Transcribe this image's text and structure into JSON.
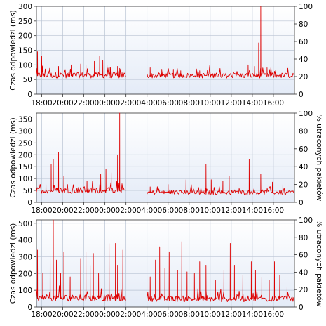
{
  "colors": {
    "series": "#dd0000",
    "plot_bg_top": "#ffffff",
    "plot_bg_bottom": "#e4ebf7",
    "grid": "#b9c3d3",
    "gap_bg": "#f7f8fb"
  },
  "chart_data": [
    {
      "type": "line",
      "ylabel": "Czas odpowiedzi (ms)",
      "y2label": "",
      "xlabel": "",
      "ylim": [
        0,
        300
      ],
      "y2lim": [
        0,
        100
      ],
      "yticks": [
        "0",
        "50",
        "100",
        "150",
        "200",
        "250",
        "300"
      ],
      "y2ticks": [
        "0",
        "20",
        "40",
        "60",
        "80",
        "100"
      ],
      "xticks": [
        "20:00",
        "22:00",
        "00:00",
        "02:00",
        "04:00",
        "06:00",
        "08:00",
        "10:00",
        "12:00",
        "14:00",
        "16:00",
        "18:00"
      ],
      "x_start_hour": 17.5,
      "x_end_hour": 42.0,
      "grid": true,
      "series": [
        {
          "segments": [
            {
              "start_hour": 17.5,
              "end_hour": 26.0,
              "base": 63,
              "noise": 10,
              "spikes": [
                [
                  17.6,
                  145
                ],
                [
                  18.0,
                  130
                ],
                [
                  19.6,
                  95
                ],
                [
                  20.8,
                  100
                ],
                [
                  21.7,
                  103
                ],
                [
                  22.2,
                  100
                ],
                [
                  23.0,
                  112
                ],
                [
                  23.5,
                  130
                ],
                [
                  23.8,
                  115
                ],
                [
                  24.2,
                  100
                ],
                [
                  24.5,
                  92
                ],
                [
                  25.2,
                  95
                ],
                [
                  25.4,
                  88
                ]
              ]
            },
            {
              "start_hour": 28.0,
              "end_hour": 42.0,
              "base": 62,
              "noise": 9,
              "spikes": [
                [
                  28.3,
                  90
                ],
                [
                  29.4,
                  85
                ],
                [
                  30.5,
                  85
                ],
                [
                  31.2,
                  80
                ],
                [
                  33.0,
                  80
                ],
                [
                  37.6,
                  100
                ],
                [
                  38.2,
                  95
                ],
                [
                  38.6,
                  175
                ],
                [
                  38.8,
                  300
                ],
                [
                  39.4,
                  90
                ],
                [
                  40.2,
                  80
                ]
              ]
            }
          ]
        }
      ]
    },
    {
      "type": "line",
      "ylabel": "Czas odpowiedzi (ms)",
      "y2label": "% utraconych pakietów",
      "xlabel": "",
      "ylim": [
        0,
        375
      ],
      "y2lim": [
        0,
        100
      ],
      "yticks": [
        "0",
        "50",
        "100",
        "150",
        "200",
        "250",
        "300",
        "350"
      ],
      "y2ticks": [
        "0",
        "20",
        "40",
        "60",
        "80",
        "100"
      ],
      "xticks": [
        "20:00",
        "22:00",
        "00:00",
        "02:00",
        "04:00",
        "06:00",
        "08:00",
        "10:00",
        "12:00",
        "14:00",
        "16:00",
        "18:00"
      ],
      "x_start_hour": 17.5,
      "x_end_hour": 42.0,
      "grid": true,
      "series": [
        {
          "segments": [
            {
              "start_hour": 17.5,
              "end_hour": 26.0,
              "base": 48,
              "noise": 12,
              "spikes": [
                [
                  18.4,
                  90
                ],
                [
                  18.9,
                  160
                ],
                [
                  19.1,
                  180
                ],
                [
                  19.6,
                  210
                ],
                [
                  20.1,
                  110
                ],
                [
                  22.3,
                  90
                ],
                [
                  23.6,
                  120
                ],
                [
                  24.1,
                  140
                ],
                [
                  24.6,
                  125
                ],
                [
                  25.2,
                  200
                ],
                [
                  25.4,
                  375
                ]
              ]
            },
            {
              "start_hour": 28.0,
              "end_hour": 42.0,
              "base": 40,
              "noise": 9,
              "spikes": [
                [
                  28.3,
                  65
                ],
                [
                  30.0,
                  75
                ],
                [
                  31.7,
                  95
                ],
                [
                  33.6,
                  160
                ],
                [
                  34.1,
                  95
                ],
                [
                  35.2,
                  90
                ],
                [
                  35.8,
                  110
                ],
                [
                  37.7,
                  180
                ],
                [
                  38.8,
                  120
                ],
                [
                  39.9,
                  85
                ],
                [
                  40.9,
                  90
                ]
              ]
            }
          ]
        }
      ]
    },
    {
      "type": "line",
      "ylabel": "Czas odpowiedzi (ms)",
      "y2label": "% utraconych pakietów",
      "xlabel": "",
      "ylim": [
        0,
        520
      ],
      "y2lim": [
        0,
        100
      ],
      "yticks": [
        "0",
        "100",
        "200",
        "300",
        "400",
        "500"
      ],
      "y2ticks": [
        "0",
        "20",
        "40",
        "60",
        "80",
        "100"
      ],
      "xticks": [
        "20:00",
        "22:00",
        "00:00",
        "02:00",
        "04:00",
        "06:00",
        "08:00",
        "10:00",
        "12:00",
        "14:00",
        "16:00",
        "18:00"
      ],
      "x_start_hour": 17.5,
      "x_end_hour": 42.0,
      "grid": true,
      "series": [
        {
          "segments": [
            {
              "start_hour": 17.5,
              "end_hour": 26.0,
              "base": 50,
              "noise": 20,
              "spikes": [
                [
                  17.6,
                  340
                ],
                [
                  18.1,
                  200
                ],
                [
                  18.8,
                  420
                ],
                [
                  19.1,
                  520
                ],
                [
                  19.4,
                  280
                ],
                [
                  19.8,
                  200
                ],
                [
                  20.1,
                  330
                ],
                [
                  20.7,
                  180
                ],
                [
                  21.7,
                  290
                ],
                [
                  22.2,
                  330
                ],
                [
                  22.6,
                  250
                ],
                [
                  22.9,
                  320
                ],
                [
                  23.4,
                  200
                ],
                [
                  24.4,
                  380
                ],
                [
                  25.0,
                  380
                ],
                [
                  25.2,
                  250
                ],
                [
                  25.7,
                  340
                ]
              ]
            },
            {
              "start_hour": 28.0,
              "end_hour": 42.0,
              "base": 45,
              "noise": 18,
              "spikes": [
                [
                  28.3,
                  180
                ],
                [
                  28.8,
                  280
                ],
                [
                  29.2,
                  360
                ],
                [
                  29.7,
                  230
                ],
                [
                  30.1,
                  330
                ],
                [
                  30.9,
                  220
                ],
                [
                  31.3,
                  390
                ],
                [
                  31.8,
                  210
                ],
                [
                  32.5,
                  200
                ],
                [
                  33.0,
                  270
                ],
                [
                  33.6,
                  250
                ],
                [
                  34.5,
                  160
                ],
                [
                  35.3,
                  220
                ],
                [
                  35.9,
                  380
                ],
                [
                  36.3,
                  250
                ],
                [
                  37.1,
                  190
                ],
                [
                  37.9,
                  270
                ],
                [
                  38.3,
                  220
                ],
                [
                  38.9,
                  180
                ],
                [
                  39.6,
                  160
                ],
                [
                  40.1,
                  270
                ],
                [
                  40.6,
                  190
                ],
                [
                  41.3,
                  150
                ]
              ]
            }
          ]
        }
      ]
    }
  ]
}
